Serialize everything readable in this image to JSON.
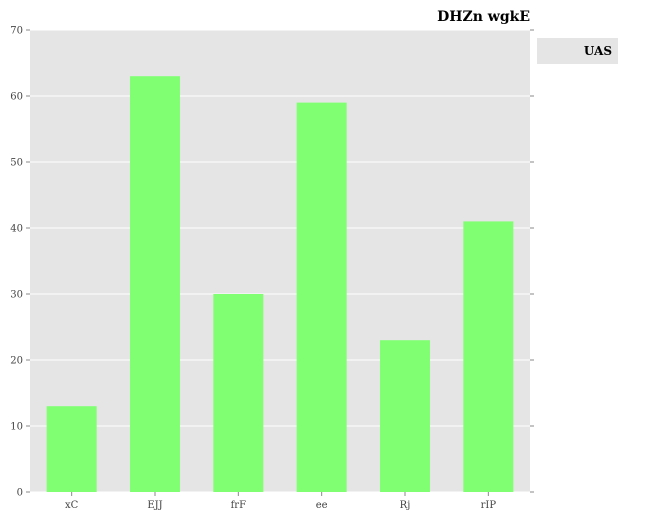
{
  "chart_data": {
    "type": "bar",
    "title": "DHZn wgkE",
    "xlabel": "",
    "ylabel": "",
    "categories": [
      "xC",
      "EJJ",
      "frF",
      "ee",
      "Rj",
      "rIP"
    ],
    "series": [
      {
        "name": "UAS",
        "values": [
          13,
          63,
          30,
          59,
          23,
          41
        ]
      }
    ],
    "ylim": [
      0,
      70
    ],
    "yticks": [
      0,
      10,
      20,
      30,
      40,
      50,
      60,
      70
    ],
    "grid": true,
    "legend_position": "right",
    "colors": {
      "bar": "#80ff72",
      "plot_background": "#e5e5e5",
      "grid": "#ffffff"
    }
  }
}
